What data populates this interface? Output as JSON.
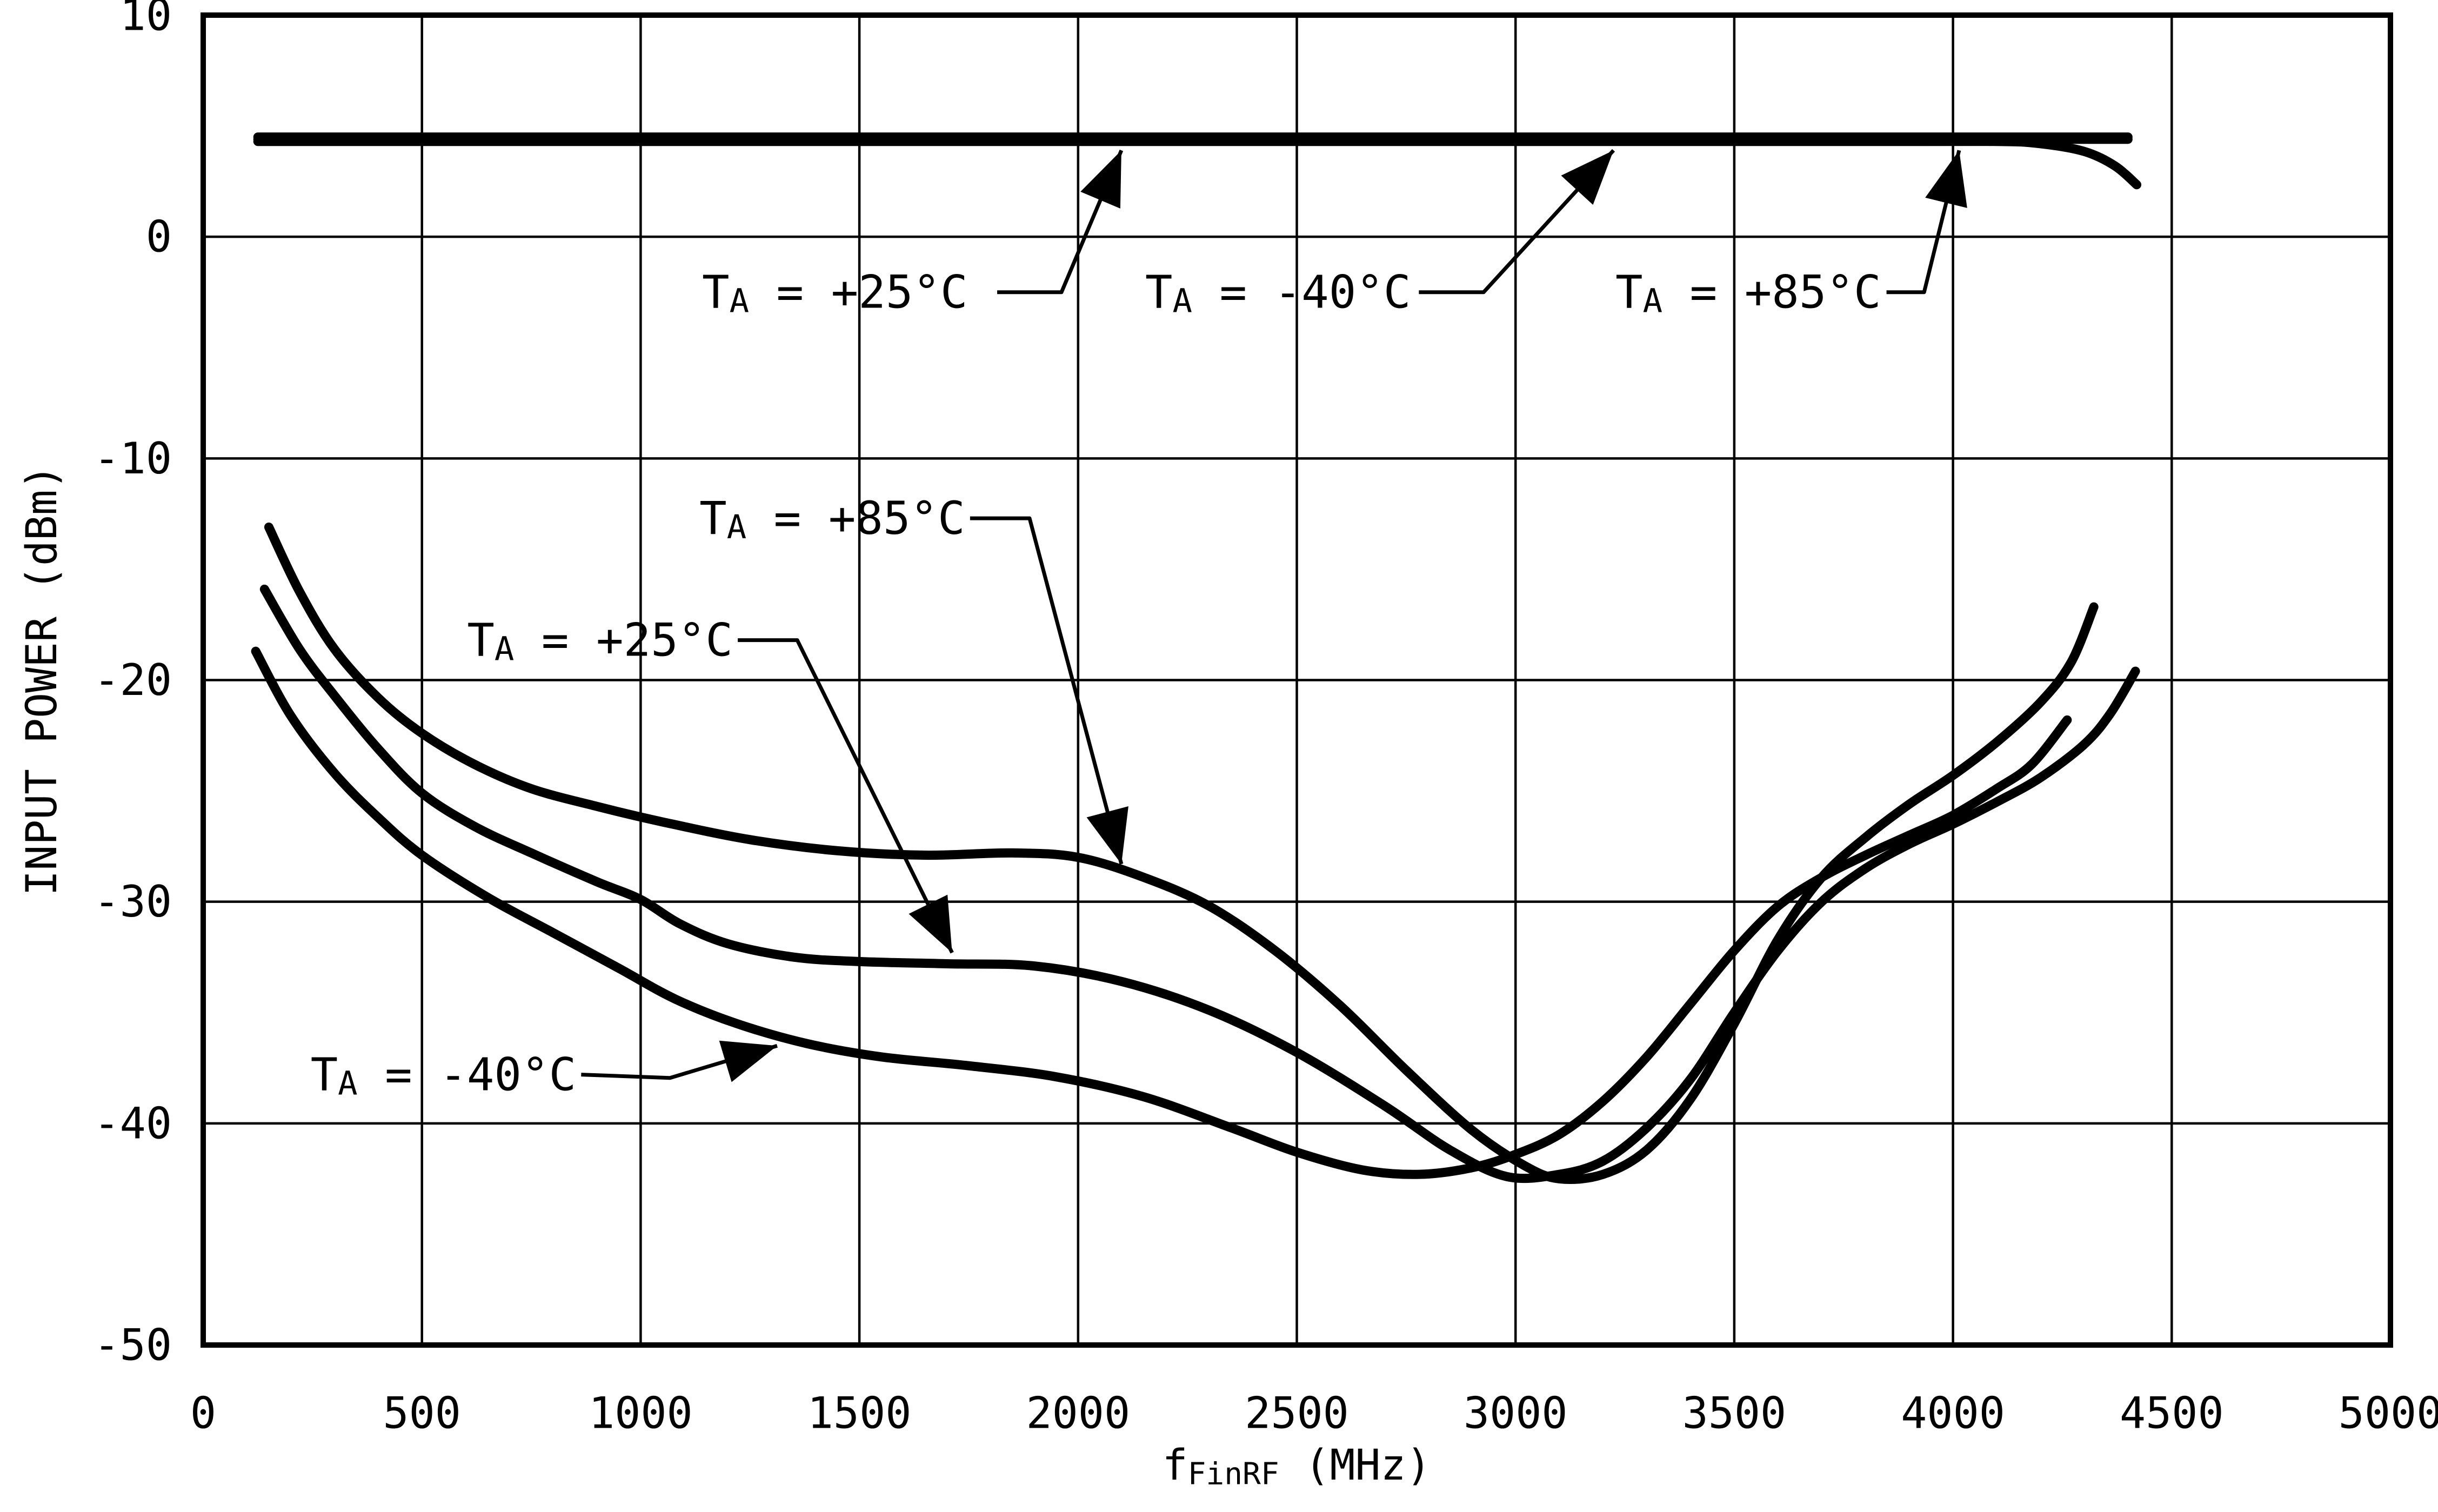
{
  "figure": {
    "background_color": "#ffffff",
    "line_color": "#000000"
  },
  "chart_data": {
    "type": "line",
    "xlabel": {
      "pre": "f",
      "sub": "FinRF",
      "post": " (MHz)"
    },
    "ylabel": "INPUT POWER (dBm)",
    "xlim": [
      0,
      5000
    ],
    "ylim": [
      -50,
      10
    ],
    "xticks": [
      0,
      500,
      1000,
      1500,
      2000,
      2500,
      3000,
      3500,
      4000,
      4500,
      5000
    ],
    "yticks": [
      10,
      0,
      -10,
      -20,
      -30,
      -40,
      -50
    ],
    "grid": true,
    "legend_position": "none",
    "colors": {
      "curve": "#000000",
      "background": "#ffffff"
    },
    "series": [
      {
        "id": "upper-minus40",
        "name": "TA = -40°C (upper flat line)",
        "temp": "-40°C",
        "group": "upper",
        "points": [
          [
            125,
            4.5
          ],
          [
            1500,
            4.5
          ],
          [
            3000,
            4.5
          ],
          [
            4400,
            4.5
          ]
        ]
      },
      {
        "id": "upper-plus25",
        "name": "TA = +25°C (upper flat line)",
        "temp": "+25°C",
        "group": "upper",
        "points": [
          [
            125,
            4.4
          ],
          [
            1500,
            4.4
          ],
          [
            3000,
            4.4
          ],
          [
            4400,
            4.4
          ]
        ]
      },
      {
        "id": "upper-plus85",
        "name": "TA = +85°C (upper line, rolls off at right)",
        "temp": "+85°C",
        "group": "upper",
        "points": [
          [
            125,
            4.3
          ],
          [
            1000,
            4.3
          ],
          [
            2000,
            4.3
          ],
          [
            3000,
            4.3
          ],
          [
            3800,
            4.3
          ],
          [
            4100,
            4.3
          ],
          [
            4200,
            4.2
          ],
          [
            4300,
            3.85
          ],
          [
            4370,
            3.2
          ],
          [
            4420,
            2.35
          ]
        ]
      },
      {
        "id": "lower-plus85",
        "name": "TA = +85°C (lower curve)",
        "temp": "+85°C",
        "group": "lower",
        "points": [
          [
            150,
            -13.1
          ],
          [
            220,
            -16.0
          ],
          [
            300,
            -18.6
          ],
          [
            400,
            -20.8
          ],
          [
            500,
            -22.4
          ],
          [
            620,
            -23.8
          ],
          [
            750,
            -24.9
          ],
          [
            900,
            -25.7
          ],
          [
            1050,
            -26.4
          ],
          [
            1250,
            -27.2
          ],
          [
            1450,
            -27.7
          ],
          [
            1650,
            -27.9
          ],
          [
            1850,
            -27.8
          ],
          [
            2000,
            -28.0
          ],
          [
            2150,
            -28.9
          ],
          [
            2300,
            -30.2
          ],
          [
            2450,
            -32.2
          ],
          [
            2600,
            -34.7
          ],
          [
            2750,
            -37.6
          ],
          [
            2900,
            -40.3
          ],
          [
            3020,
            -41.9
          ],
          [
            3100,
            -42.5
          ],
          [
            3200,
            -42.3
          ],
          [
            3300,
            -41.2
          ],
          [
            3400,
            -38.9
          ],
          [
            3500,
            -35.5
          ],
          [
            3600,
            -31.7
          ],
          [
            3700,
            -28.9
          ],
          [
            3800,
            -27.1
          ],
          [
            3900,
            -25.6
          ],
          [
            4000,
            -24.3
          ],
          [
            4100,
            -22.8
          ],
          [
            4200,
            -21.0
          ],
          [
            4270,
            -19.2
          ],
          [
            4322,
            -16.7
          ]
        ]
      },
      {
        "id": "lower-plus25",
        "name": "TA = +25°C (lower curve)",
        "temp": "+25°C",
        "group": "lower",
        "points": [
          [
            140,
            -15.9
          ],
          [
            220,
            -18.6
          ],
          [
            300,
            -20.7
          ],
          [
            400,
            -23.1
          ],
          [
            500,
            -25.1
          ],
          [
            620,
            -26.6
          ],
          [
            750,
            -27.8
          ],
          [
            900,
            -29.1
          ],
          [
            1000,
            -29.9
          ],
          [
            1090,
            -31.0
          ],
          [
            1200,
            -31.9
          ],
          [
            1350,
            -32.5
          ],
          [
            1500,
            -32.7
          ],
          [
            1700,
            -32.8
          ],
          [
            1900,
            -32.9
          ],
          [
            2100,
            -33.6
          ],
          [
            2300,
            -34.9
          ],
          [
            2500,
            -36.8
          ],
          [
            2700,
            -39.2
          ],
          [
            2850,
            -41.2
          ],
          [
            2980,
            -42.4
          ],
          [
            3100,
            -42.3
          ],
          [
            3200,
            -41.7
          ],
          [
            3300,
            -40.2
          ],
          [
            3400,
            -38.0
          ],
          [
            3500,
            -35.0
          ],
          [
            3600,
            -32.2
          ],
          [
            3700,
            -30.0
          ],
          [
            3800,
            -28.5
          ],
          [
            3900,
            -27.4
          ],
          [
            4000,
            -26.5
          ],
          [
            4100,
            -25.5
          ],
          [
            4200,
            -24.4
          ],
          [
            4300,
            -22.9
          ],
          [
            4360,
            -21.5
          ],
          [
            4417,
            -19.6
          ]
        ]
      },
      {
        "id": "lower-minus40",
        "name": "TA = -40°C (lower curve)",
        "temp": "-40°C",
        "group": "lower",
        "points": [
          [
            120,
            -18.7
          ],
          [
            200,
            -21.6
          ],
          [
            300,
            -24.2
          ],
          [
            400,
            -26.2
          ],
          [
            500,
            -27.9
          ],
          [
            650,
            -29.8
          ],
          [
            800,
            -31.4
          ],
          [
            950,
            -33.0
          ],
          [
            1080,
            -34.4
          ],
          [
            1220,
            -35.5
          ],
          [
            1380,
            -36.4
          ],
          [
            1550,
            -37.0
          ],
          [
            1750,
            -37.4
          ],
          [
            1950,
            -37.9
          ],
          [
            2150,
            -38.8
          ],
          [
            2350,
            -40.2
          ],
          [
            2500,
            -41.3
          ],
          [
            2650,
            -42.1
          ],
          [
            2780,
            -42.3
          ],
          [
            2900,
            -42.0
          ],
          [
            3000,
            -41.4
          ],
          [
            3100,
            -40.5
          ],
          [
            3200,
            -39.0
          ],
          [
            3300,
            -37.0
          ],
          [
            3400,
            -34.6
          ],
          [
            3500,
            -32.2
          ],
          [
            3600,
            -30.2
          ],
          [
            3700,
            -28.9
          ],
          [
            3800,
            -27.9
          ],
          [
            3900,
            -27.0
          ],
          [
            4000,
            -26.1
          ],
          [
            4100,
            -24.9
          ],
          [
            4180,
            -23.8
          ],
          [
            4261,
            -21.8
          ]
        ]
      }
    ],
    "annotations": [
      {
        "id": "anno-top-plus25",
        "pre": "T",
        "sub": "A",
        "post": " = +25°C",
        "text_pos": {
          "x": 1444,
          "y": -2.5
        },
        "leader": [
          [
            1815,
            -2.5
          ],
          [
            1962,
            -2.5
          ],
          [
            2099,
            3.9
          ]
        ],
        "arrow": true
      },
      {
        "id": "anno-top-minus40",
        "pre": "T",
        "sub": "A",
        "post": " = -40°C",
        "text_pos": {
          "x": 2457,
          "y": -2.5
        },
        "leader": [
          [
            2779,
            -2.5
          ],
          [
            2927,
            -2.5
          ],
          [
            3224,
            3.9
          ]
        ],
        "arrow": true
      },
      {
        "id": "anno-top-plus85",
        "pre": "T",
        "sub": "A",
        "post": " = +85°C",
        "text_pos": {
          "x": 3532,
          "y": -2.5
        },
        "leader": [
          [
            3848,
            -2.5
          ],
          [
            3934,
            -2.5
          ],
          [
            4014,
            3.9
          ]
        ],
        "arrow": true
      },
      {
        "id": "anno-low-plus85",
        "pre": "T",
        "sub": "A",
        "post": " = +85°C",
        "text_pos": {
          "x": 1438,
          "y": -12.7
        },
        "leader": [
          [
            1753,
            -12.7
          ],
          [
            1889,
            -12.7
          ],
          [
            2099,
            -28.3
          ]
        ],
        "arrow": true
      },
      {
        "id": "anno-low-plus25",
        "pre": "T",
        "sub": "A",
        "post": " = +25°C",
        "text_pos": {
          "x": 907,
          "y": -18.2
        },
        "leader": [
          [
            1222,
            -18.2
          ],
          [
            1358,
            -18.2
          ],
          [
            1712,
            -32.3
          ]
        ],
        "arrow": true
      },
      {
        "id": "anno-low-minus40",
        "pre": "T",
        "sub": "A",
        "post": " = -40°C",
        "text_pos": {
          "x": 549,
          "y": -37.8
        },
        "leader": [
          [
            864,
            -37.8
          ],
          [
            1067,
            -37.95
          ],
          [
            1312,
            -36.5
          ]
        ],
        "arrow": true
      }
    ]
  }
}
